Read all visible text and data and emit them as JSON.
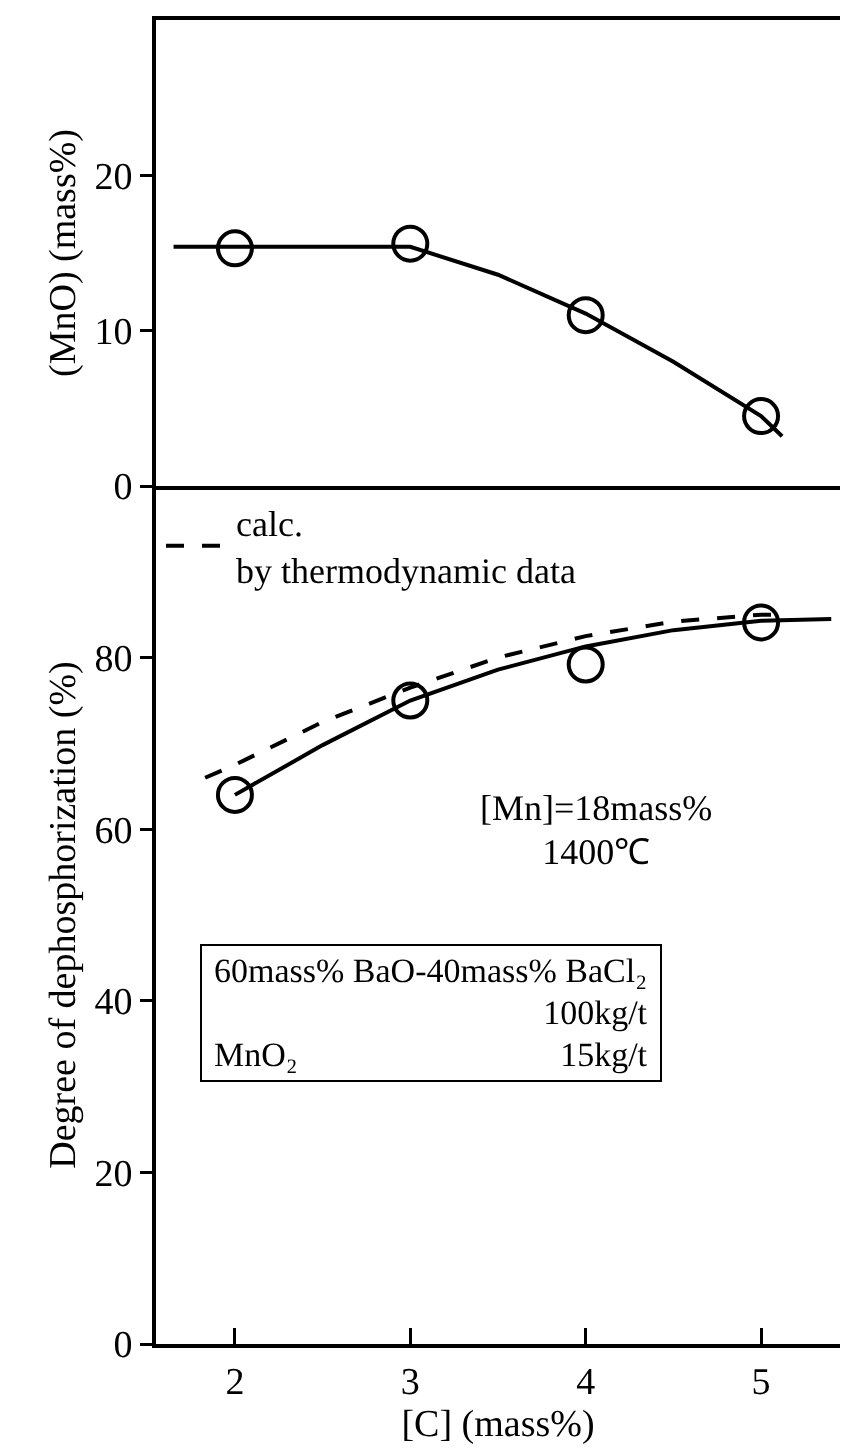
{
  "chart_data": [
    {
      "type": "scatter",
      "ylabel": "(MnO) (mass%)",
      "xlim": [
        1.55,
        5.45
      ],
      "xticks": [
        2,
        3,
        4,
        5
      ],
      "ylim": [
        0,
        30
      ],
      "yticks": [
        0,
        10,
        20
      ],
      "tick_labels": "y",
      "grid": false,
      "legend": false,
      "series": [
        {
          "type": "line",
          "color": "#000000",
          "line_style": "solid",
          "marker": "none",
          "x": [
            1.65,
            2,
            2.5,
            3,
            3.5,
            4,
            4.5,
            5,
            5.12
          ],
          "values": [
            15.4,
            15.4,
            15.4,
            15.4,
            13.6,
            11.1,
            8,
            4.5,
            3.2
          ]
        },
        {
          "color": "#000000",
          "marker": "circle",
          "x": [
            2,
            3,
            4,
            5
          ],
          "values": [
            15.3,
            15.6,
            11,
            4.5
          ]
        }
      ]
    },
    {
      "type": "scatter",
      "xlabel": "[C] (mass%)",
      "ylabel": "Degree of dephosphorization (%)",
      "xlim": [
        1.55,
        5.45
      ],
      "xticks": [
        2,
        3,
        4,
        5
      ],
      "ylim": [
        0,
        100
      ],
      "yticks": [
        0,
        20,
        40,
        60,
        80
      ],
      "grid": false,
      "legend": "top left",
      "series": [
        {
          "type": "line",
          "name": "calc.\nby thermodynamic data",
          "color": "#000000",
          "line_style": "dashed",
          "marker": "none",
          "x": [
            1.83,
            2,
            2.5,
            3,
            3.5,
            4,
            4.5,
            5,
            5.1
          ],
          "values": [
            66,
            67.5,
            72.5,
            76.5,
            80,
            82.5,
            84.2,
            85,
            85
          ]
        },
        {
          "type": "line",
          "color": "#000000",
          "line_style": "solid",
          "marker": "none",
          "x": [
            2,
            2.5,
            3,
            3.5,
            4,
            4.5,
            5,
            5.4
          ],
          "values": [
            64,
            69.8,
            75,
            78.6,
            81.3,
            83.2,
            84.3,
            84.5
          ]
        },
        {
          "color": "#000000",
          "marker": "circle",
          "x": [
            2,
            3,
            4,
            5
          ],
          "values": [
            64,
            75,
            79.2,
            84.1
          ]
        }
      ],
      "annotations": [
        "[Mn]=18mass%\n1400℃",
        "60mass% BaO-40mass% BaCl₂\n\t100kg/t\nMnO₂\t15kg/t"
      ]
    }
  ]
}
